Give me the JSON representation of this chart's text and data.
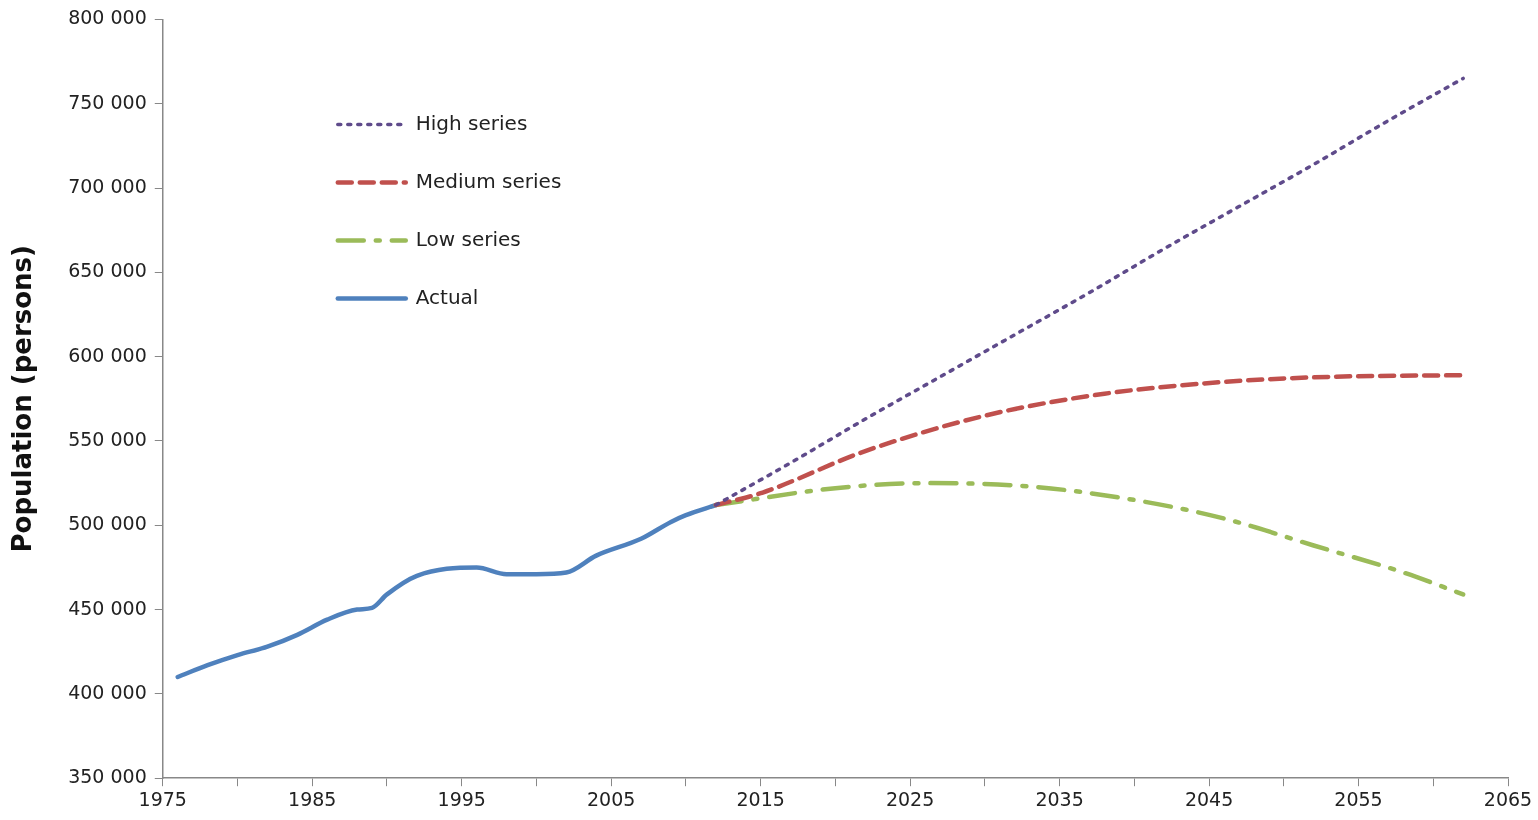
{
  "chart_data": {
    "type": "line",
    "ylabel": "Population (persons)",
    "legend": "top left",
    "grid": false,
    "marker": "none",
    "xlim": [
      1975,
      2065
    ],
    "xticks": [
      1975,
      {
        "value": 1980,
        "label": null
      },
      1985,
      {
        "value": 1990,
        "label": null
      },
      1995,
      {
        "value": 2000,
        "label": null
      },
      2005,
      {
        "value": 2010,
        "label": null
      },
      2015,
      {
        "value": 2020,
        "label": null
      },
      2025,
      {
        "value": 2030,
        "label": null
      },
      2035,
      {
        "value": 2040,
        "label": null
      },
      2045,
      {
        "value": 2050,
        "label": null
      },
      2055,
      {
        "value": 2060,
        "label": null
      },
      2065
    ],
    "ylim": [
      350000,
      800000
    ],
    "yticks": [
      {
        "value": 350000,
        "label": "350 000"
      },
      {
        "value": 400000,
        "label": "400 000"
      },
      {
        "value": 450000,
        "label": "450 000"
      },
      {
        "value": 500000,
        "label": "500 000"
      },
      {
        "value": 550000,
        "label": "550 000"
      },
      {
        "value": 600000,
        "label": "600 000"
      },
      {
        "value": 650000,
        "label": "650 000"
      },
      {
        "value": 700000,
        "label": "700 000"
      },
      {
        "value": 750000,
        "label": "750 000"
      },
      {
        "value": 800000,
        "label": "800 000"
      }
    ],
    "series": [
      {
        "name": "High series",
        "color": "#5f4b8b",
        "line_style": "dotted",
        "x": [
          2012,
          2017,
          2022,
          2027,
          2032,
          2037,
          2042,
          2047,
          2052,
          2057,
          2062
        ],
        "values": [
          512000,
          537000,
          563000,
          588000,
          613000,
          638000,
          664000,
          689000,
          714000,
          740000,
          765000
        ]
      },
      {
        "name": "Medium series",
        "color": "#c0504d",
        "line_style": "dashed",
        "x": [
          2012,
          2015,
          2022,
          2030,
          2038,
          2046,
          2053,
          2062
        ],
        "values": [
          512000,
          519000,
          544000,
          565000,
          578000,
          585000,
          588000,
          589000
        ]
      },
      {
        "name": "Low series",
        "color": "#9bbb59",
        "line_style": "dashdot",
        "x": [
          2012,
          2020,
          2026,
          2033,
          2040,
          2046,
          2052,
          2058,
          2062
        ],
        "values": [
          512000,
          522000,
          525000,
          523000,
          515000,
          504000,
          488000,
          472000,
          459000
        ]
      },
      {
        "name": "Actual",
        "color": "#4f81bd",
        "line_style": "solid",
        "x": [
          1976,
          1978,
          1980,
          1982,
          1984,
          1986,
          1988,
          1989,
          1990,
          1992,
          1996,
          1998,
          2000,
          2002,
          2004,
          2007,
          2009,
          2010,
          2012
        ],
        "values": [
          410000,
          417000,
          423000,
          428000,
          435000,
          444000,
          450000,
          451000,
          459000,
          470000,
          475000,
          471000,
          471000,
          472000,
          482000,
          492000,
          502000,
          506000,
          512000
        ]
      }
    ]
  }
}
